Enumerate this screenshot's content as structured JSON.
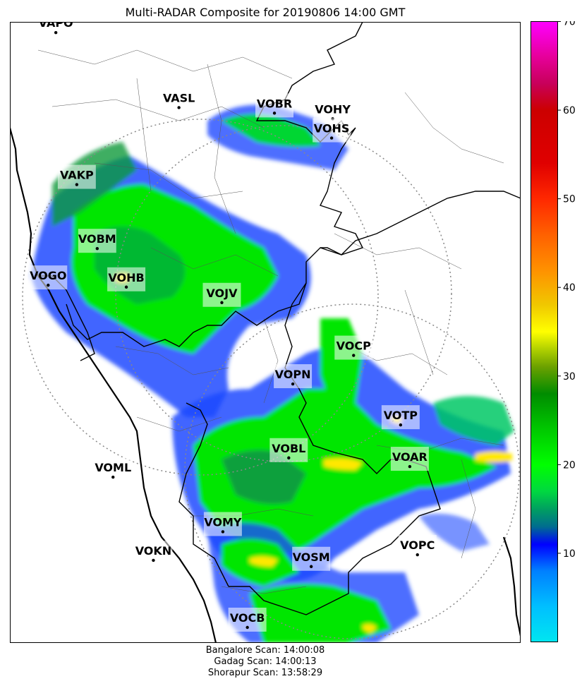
{
  "title": "Multi-RADAR Composite for 20190806 14:00 GMT",
  "footer": {
    "lines": [
      "Bangalore Scan: 14:00:08",
      "Gadag Scan: 14:00:13",
      "Shorapur Scan: 13:58:29"
    ]
  },
  "colorbar": {
    "min": 0,
    "max": 70,
    "ticks": [
      10,
      20,
      30,
      40,
      50,
      60,
      70
    ],
    "tick_labels": [
      "10",
      "20",
      "30",
      "40",
      "50",
      "60",
      "70"
    ],
    "stops": [
      {
        "v": 0,
        "c": "#00e6f0"
      },
      {
        "v": 4,
        "c": "#00bfff"
      },
      {
        "v": 8,
        "c": "#0080ff"
      },
      {
        "v": 11,
        "c": "#0000ff"
      },
      {
        "v": 13,
        "c": "#006d8f"
      },
      {
        "v": 15,
        "c": "#00a060"
      },
      {
        "v": 17,
        "c": "#00d840"
      },
      {
        "v": 20,
        "c": "#00ff00"
      },
      {
        "v": 24,
        "c": "#00c800"
      },
      {
        "v": 28,
        "c": "#008c00"
      },
      {
        "v": 31,
        "c": "#6aa000"
      },
      {
        "v": 33,
        "c": "#b0d000"
      },
      {
        "v": 35,
        "c": "#ffff00"
      },
      {
        "v": 38,
        "c": "#f0c800"
      },
      {
        "v": 42,
        "c": "#ff9000"
      },
      {
        "v": 46,
        "c": "#ff6000"
      },
      {
        "v": 50,
        "c": "#ff2800"
      },
      {
        "v": 54,
        "c": "#e00000"
      },
      {
        "v": 60,
        "c": "#cc0000"
      },
      {
        "v": 63,
        "c": "#c8005a"
      },
      {
        "v": 66,
        "c": "#e6009a"
      },
      {
        "v": 70,
        "c": "#ff00ff"
      }
    ]
  },
  "stations": [
    {
      "name": "VAPO",
      "lon": 0.09,
      "lat": 0.0173
    },
    {
      "name": "VASL",
      "lon": 0.331,
      "lat": 0.138
    },
    {
      "name": "VOBR",
      "lon": 0.518,
      "lat": 0.147
    },
    {
      "name": "VOHY",
      "lon": 0.632,
      "lat": 0.156
    },
    {
      "name": "VOHS",
      "lon": 0.63,
      "lat": 0.187
    },
    {
      "name": "VAKP",
      "lon": 0.131,
      "lat": 0.262
    },
    {
      "name": "VOBM",
      "lon": 0.171,
      "lat": 0.365
    },
    {
      "name": "VOGO",
      "lon": 0.075,
      "lat": 0.424
    },
    {
      "name": "VOHB",
      "lon": 0.228,
      "lat": 0.427
    },
    {
      "name": "VOJV",
      "lon": 0.415,
      "lat": 0.452
    },
    {
      "name": "VOCP",
      "lon": 0.673,
      "lat": 0.537
    },
    {
      "name": "VOPN",
      "lon": 0.554,
      "lat": 0.583
    },
    {
      "name": "VOTP",
      "lon": 0.765,
      "lat": 0.649
    },
    {
      "name": "VOBL",
      "lon": 0.546,
      "lat": 0.702
    },
    {
      "name": "VOAR",
      "lon": 0.783,
      "lat": 0.716
    },
    {
      "name": "VOML",
      "lon": 0.202,
      "lat": 0.733
    },
    {
      "name": "VOMY",
      "lon": 0.417,
      "lat": 0.821
    },
    {
      "name": "VOKN",
      "lon": 0.281,
      "lat": 0.867
    },
    {
      "name": "VOSM",
      "lon": 0.59,
      "lat": 0.877
    },
    {
      "name": "VOPC",
      "lon": 0.798,
      "lat": 0.858
    },
    {
      "name": "VOCB",
      "lon": 0.465,
      "lat": 0.975
    }
  ],
  "colors": {
    "coast": "#000000",
    "state_border": "#000000",
    "district_border": "#555555",
    "range_ring": "#888888",
    "label_box": "#ffffff"
  }
}
